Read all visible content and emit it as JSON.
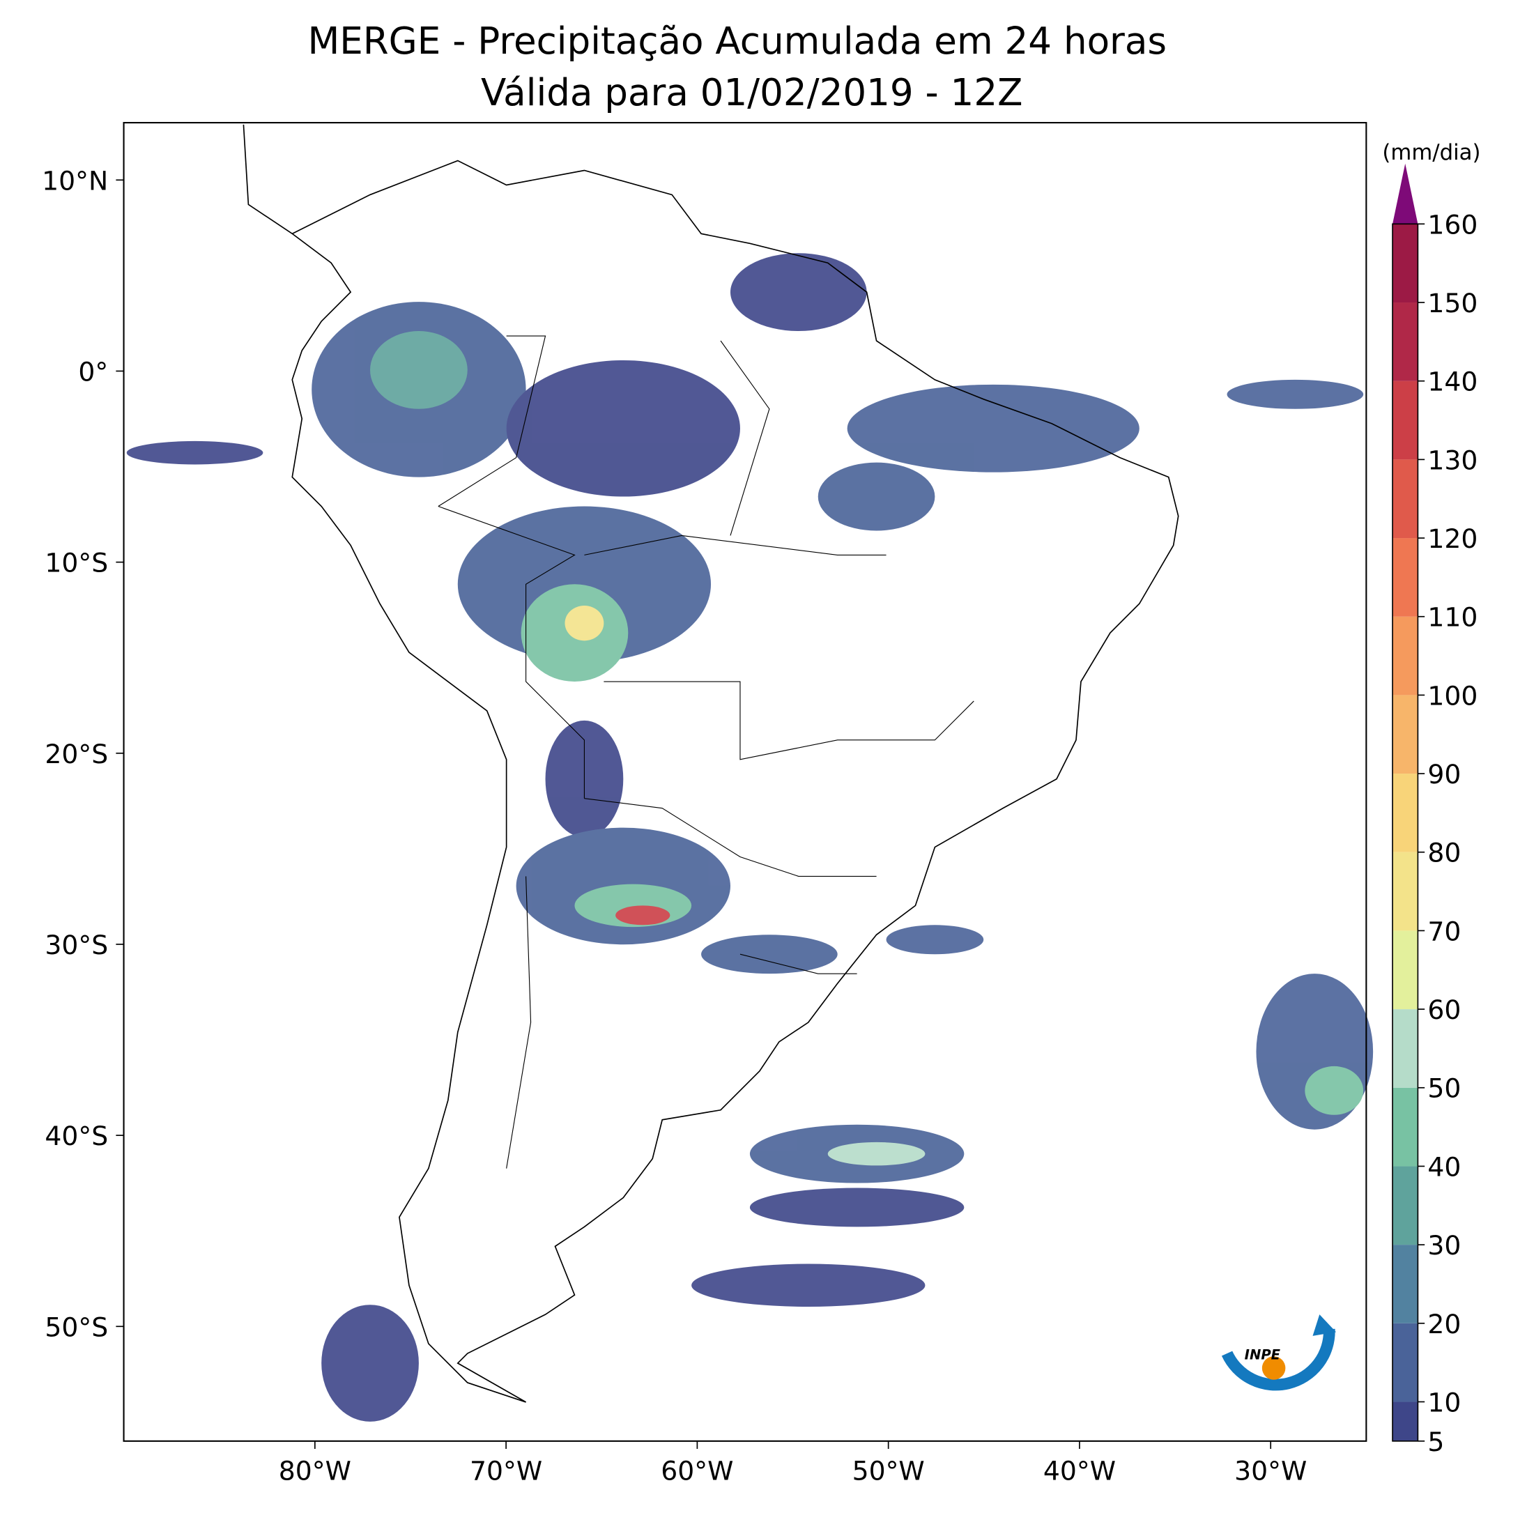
{
  "map": {
    "title": "MERGE - Precipitação Acumulada em 24 horas",
    "subtitle": "Válida para 01/02/2019 - 12Z",
    "xlim": [
      -90,
      -25
    ],
    "ylim": [
      -56,
      13
    ],
    "xticks": [
      {
        "value": -80,
        "label": "80°W"
      },
      {
        "value": -70,
        "label": "70°W"
      },
      {
        "value": -60,
        "label": "60°W"
      },
      {
        "value": -50,
        "label": "50°W"
      },
      {
        "value": -40,
        "label": "40°W"
      },
      {
        "value": -30,
        "label": "30°W"
      }
    ],
    "yticks": [
      {
        "value": 10,
        "label": "10°N"
      },
      {
        "value": 0,
        "label": "0°"
      },
      {
        "value": -10,
        "label": "10°S"
      },
      {
        "value": -20,
        "label": "20°S"
      },
      {
        "value": -30,
        "label": "30°S"
      },
      {
        "value": -40,
        "label": "40°S"
      },
      {
        "value": -50,
        "label": "50°S"
      }
    ]
  },
  "colorbar": {
    "label": "(mm/dia)",
    "lim": [
      5,
      160
    ],
    "ticks": [
      5,
      10,
      20,
      30,
      40,
      50,
      60,
      70,
      80,
      90,
      100,
      110,
      120,
      130,
      140,
      150,
      160
    ],
    "colors": [
      "#3e4689",
      "#4a6399",
      "#5282a0",
      "#5fa39c",
      "#78c2a3",
      "#b5dcc9",
      "#e3f09c",
      "#f3e38a",
      "#f8d479",
      "#f7b56a",
      "#f59a5d",
      "#ef7752",
      "#e05a4b",
      "#cc3f47",
      "#b02848",
      "#9c1a45"
    ],
    "extend_color": "#7e0a78"
  },
  "logo": "INPE"
}
